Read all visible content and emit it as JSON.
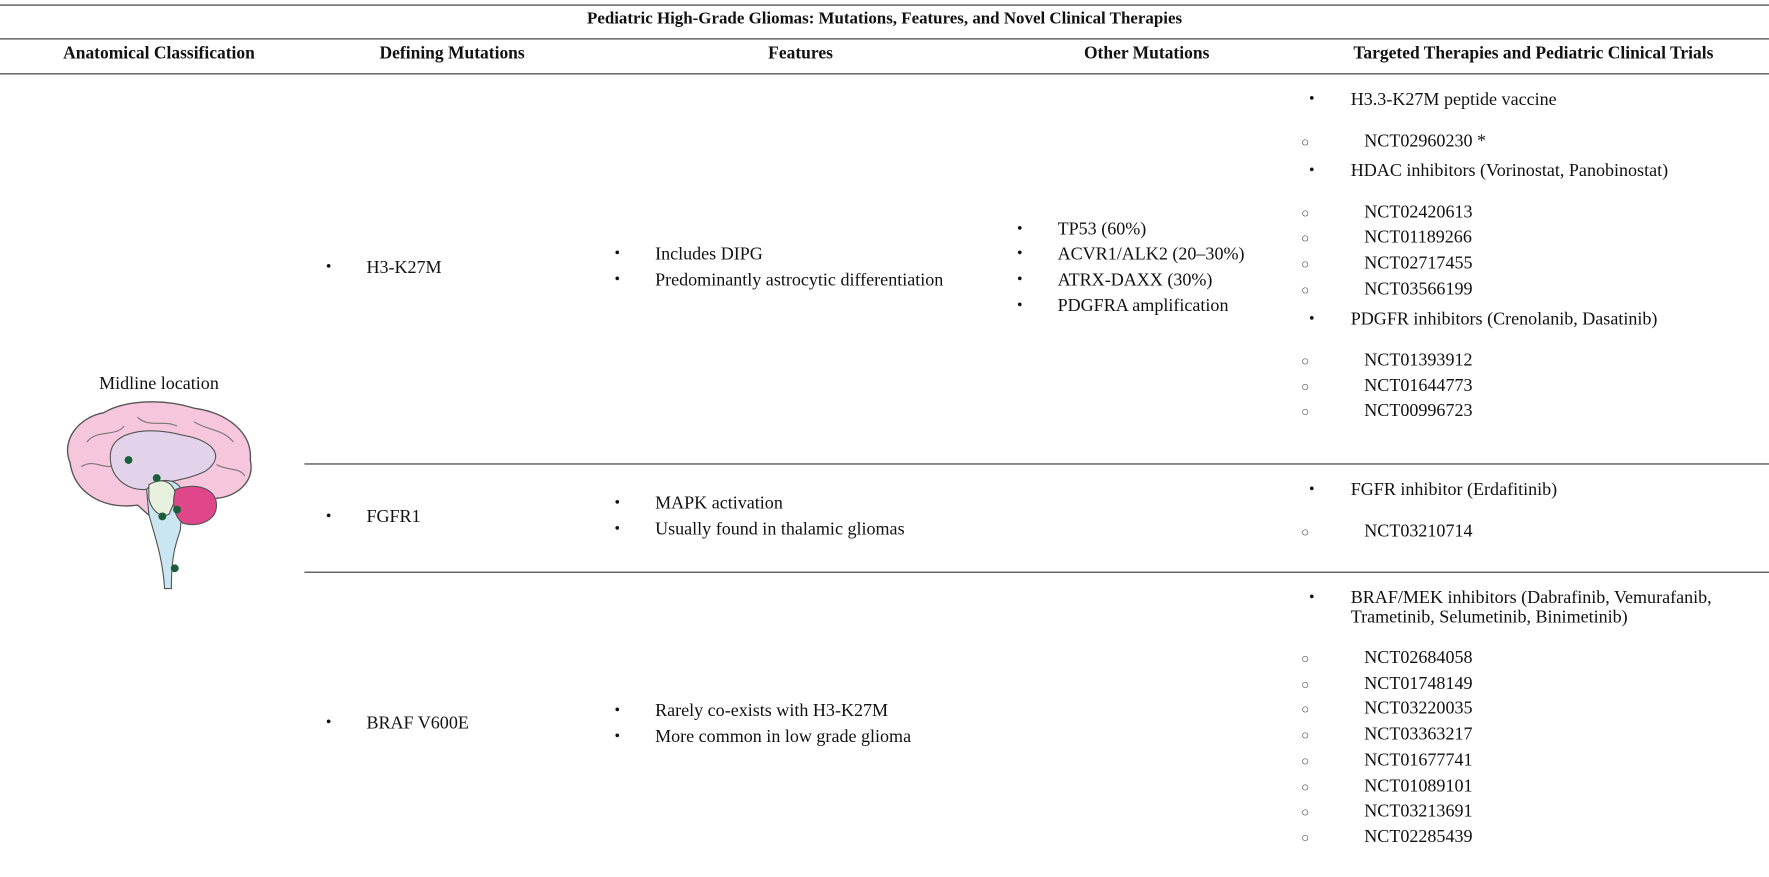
{
  "title": "Pediatric High-Grade Gliomas: Mutations, Features, and Novel Clinical Therapies",
  "headers": [
    "Anatomical Classification",
    "Defining Mutations",
    "Features",
    "Other Mutations",
    "Targeted Therapies and Pediatric Clinical Trials"
  ],
  "classification": "Midline location",
  "rows": [
    {
      "mutation": "H3-K27M",
      "features": [
        "Includes DIPG",
        "Predominantly astrocytic differentiation"
      ],
      "other_mutations": [
        "TP53 (60%)",
        "ACVR1/ALK2 (20–30%)",
        "ATRX-DAXX (30%)",
        "PDGFRA amplification"
      ],
      "therapies": [
        {
          "name": "H3.3-K27M peptide vaccine",
          "trials": [
            "NCT02960230 *"
          ]
        },
        {
          "name": "HDAC inhibitors (Vorinostat, Panobinostat)",
          "trials": [
            "NCT02420613",
            "NCT01189266",
            "NCT02717455",
            "NCT03566199"
          ]
        },
        {
          "name": "PDGFR inhibitors (Crenolanib, Dasatinib)",
          "trials": [
            "NCT01393912",
            "NCT01644773",
            "NCT00996723"
          ]
        }
      ]
    },
    {
      "mutation": "FGFR1",
      "features": [
        "MAPK activation",
        "Usually found in thalamic gliomas"
      ],
      "other_mutations": [],
      "therapies": [
        {
          "name": "FGFR inhibitor (Erdafitinib)",
          "trials": [
            "NCT03210714"
          ]
        }
      ]
    },
    {
      "mutation": "BRAF V600E",
      "features": [
        "Rarely co-exists with H3-K27M",
        "More common in low grade glioma"
      ],
      "other_mutations": [],
      "therapies": [
        {
          "name": "BRAF/MEK inhibitors (Dabrafinib, Vemurafanib, Trametinib, Selumetinib, Binimetinib)",
          "trials": [
            "NCT02684058",
            "NCT01748149",
            "NCT03220035",
            "NCT03363217",
            "NCT01677741",
            "NCT01089101",
            "NCT03213691",
            "NCT02285439"
          ]
        }
      ]
    }
  ]
}
